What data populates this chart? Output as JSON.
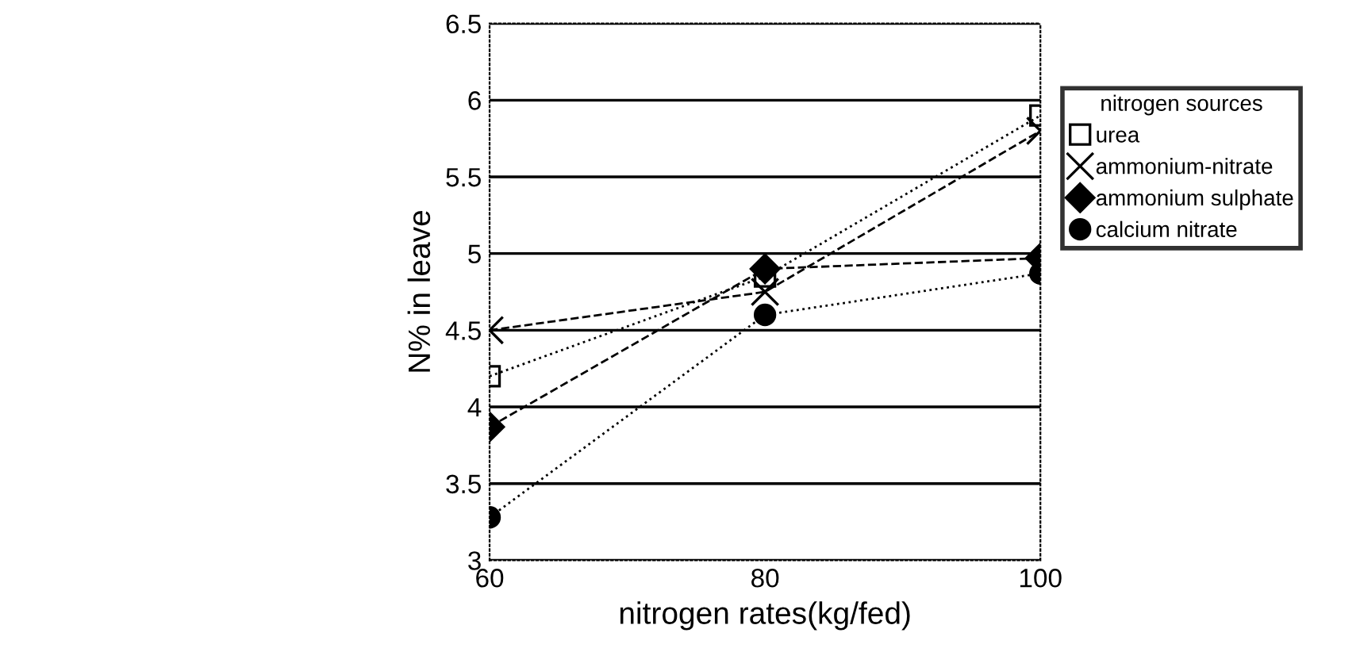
{
  "chart_data": {
    "type": "line",
    "xlabel": "nitrogen rates(kg/fed)",
    "ylabel": "N% in leave",
    "legend_title": "nitrogen sources",
    "legend": "right",
    "grid": "y",
    "x": [
      60,
      80,
      100
    ],
    "xlim": [
      60,
      100
    ],
    "xticks": [
      60,
      80,
      100
    ],
    "ylim": [
      3,
      6.5
    ],
    "yticks": [
      3,
      3.5,
      4,
      4.5,
      5,
      5.5,
      6,
      6.5
    ],
    "series": [
      {
        "name": "urea",
        "color": "#000000",
        "marker": "square",
        "line_style": "dotted",
        "values": [
          4.2,
          4.85,
          5.9
        ]
      },
      {
        "name": "ammonium-nitrate",
        "color": "#000000",
        "marker": "cross",
        "line_style": "dashed",
        "values": [
          4.5,
          4.75,
          5.8
        ]
      },
      {
        "name": "ammonium sulphate",
        "color": "#000000",
        "marker": "diamond",
        "line_style": "dashed",
        "values": [
          3.87,
          4.9,
          4.97
        ]
      },
      {
        "name": "calcium nitrate",
        "color": "#000000",
        "marker": "circle",
        "line_style": "dotted",
        "values": [
          3.28,
          4.6,
          4.87
        ]
      }
    ]
  }
}
